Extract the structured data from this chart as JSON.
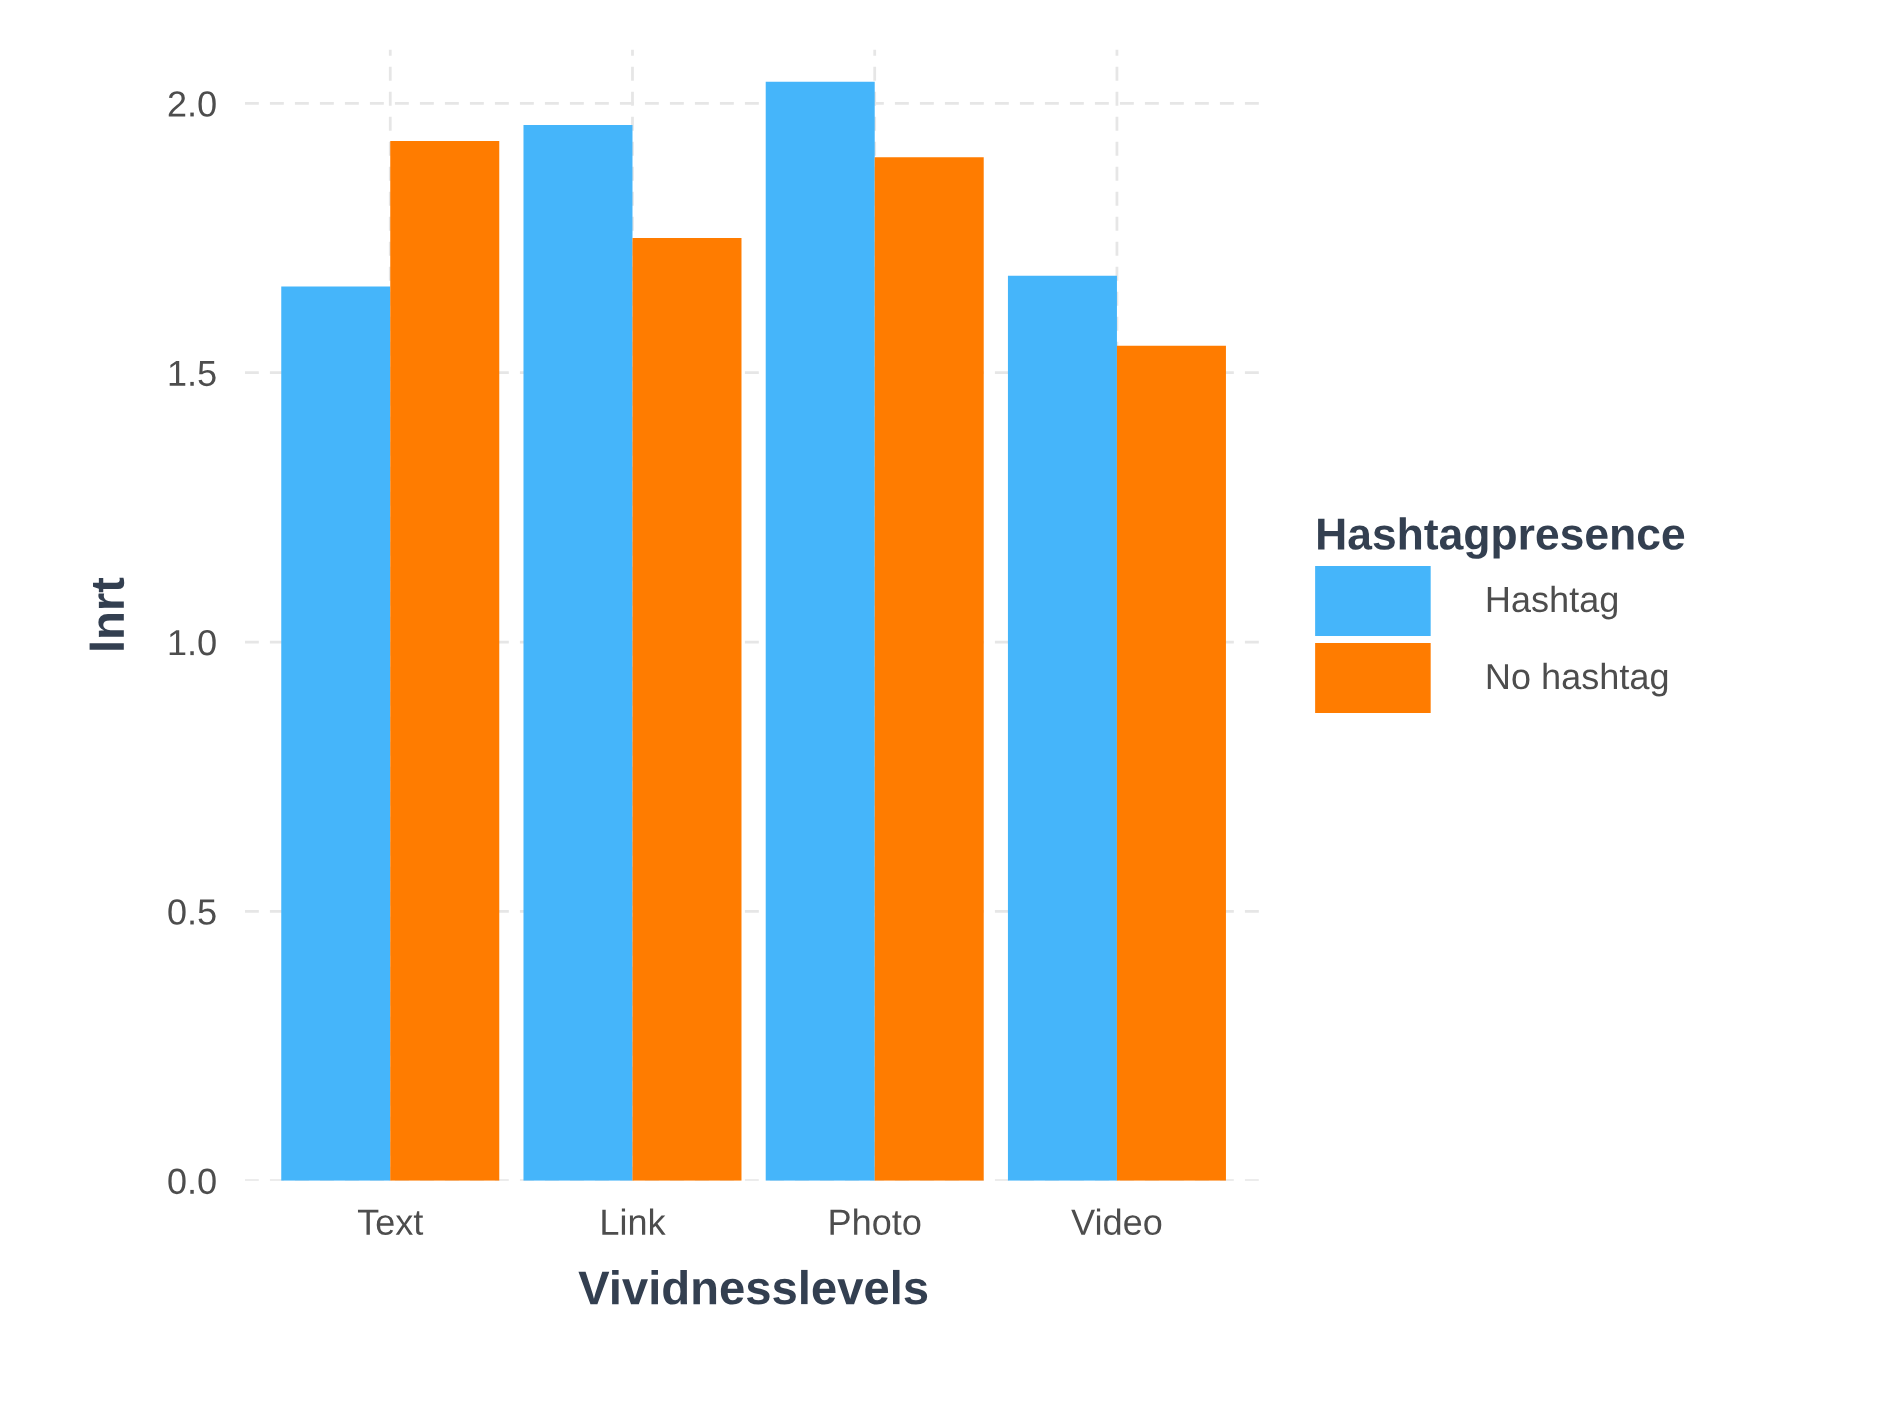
{
  "chart_data": {
    "type": "bar",
    "xlabel": "Vividnesslevels",
    "ylabel": "lnrt",
    "legend_title": "Hashtagpresence",
    "categories": [
      "Text",
      "Link",
      "Photo",
      "Video"
    ],
    "series": [
      {
        "name": "Hashtag",
        "color": "#45b5fa",
        "values": [
          1.66,
          1.96,
          2.04,
          1.68
        ]
      },
      {
        "name": "No hashtag",
        "color": "#ff7c00",
        "values": [
          1.93,
          1.75,
          1.9,
          1.55
        ]
      }
    ],
    "ylim": [
      0,
      2.1
    ],
    "yticks": [
      {
        "value": 0,
        "label": "0.0"
      },
      {
        "value": 0.5,
        "label": "0.5"
      },
      {
        "value": 1,
        "label": "1.0"
      },
      {
        "value": 1.5,
        "label": "1.5"
      },
      {
        "value": 2,
        "label": "2.0"
      }
    ],
    "grid": true,
    "legend": "right"
  }
}
